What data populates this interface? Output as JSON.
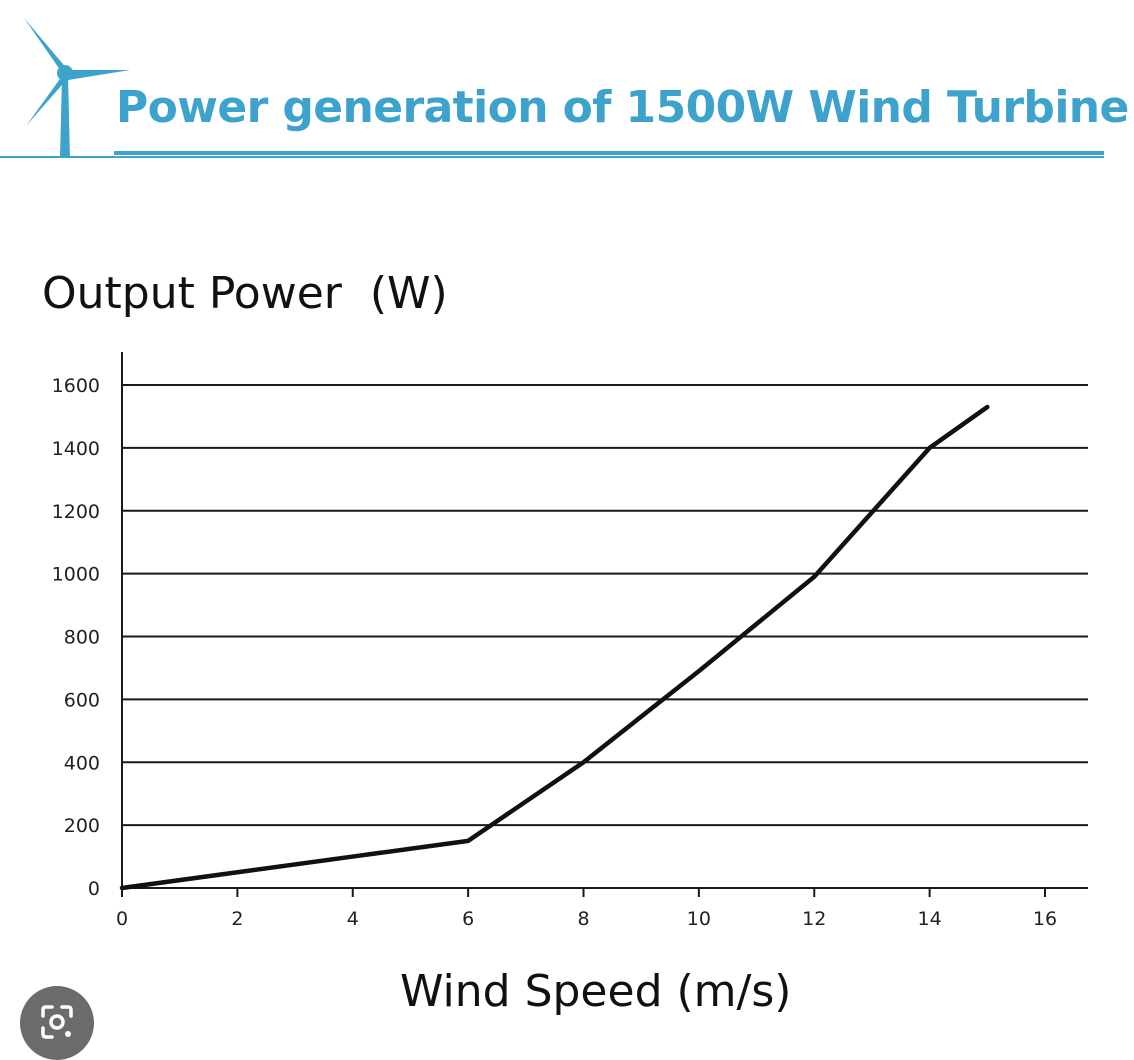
{
  "header": {
    "title": "Power generation of 1500W Wind Turbine",
    "accent_color": "#3da3cc",
    "logo_icon": "wind-turbine-icon"
  },
  "chart_data": {
    "type": "line",
    "title": "Power generation of 1500W Wind Turbine",
    "xlabel": "Wind Speed (m/s)",
    "ylabel": "Output Power  (W)",
    "xlim": [
      0,
      16.5
    ],
    "ylim": [
      0,
      1700
    ],
    "xticks": [
      0,
      2,
      4,
      6,
      8,
      10,
      12,
      14,
      16
    ],
    "yticks": [
      0,
      200,
      400,
      600,
      800,
      1000,
      1200,
      1400,
      1600
    ],
    "grid": "horizontal",
    "line_color": "#111111",
    "series": [
      {
        "x": [
          0,
          2,
          4,
          6,
          8,
          10,
          12,
          14,
          15
        ],
        "y": [
          0,
          50,
          100,
          150,
          400,
          690,
          990,
          1400,
          1530
        ]
      }
    ]
  },
  "overlay": {
    "lens_icon": "lens-search-icon"
  }
}
